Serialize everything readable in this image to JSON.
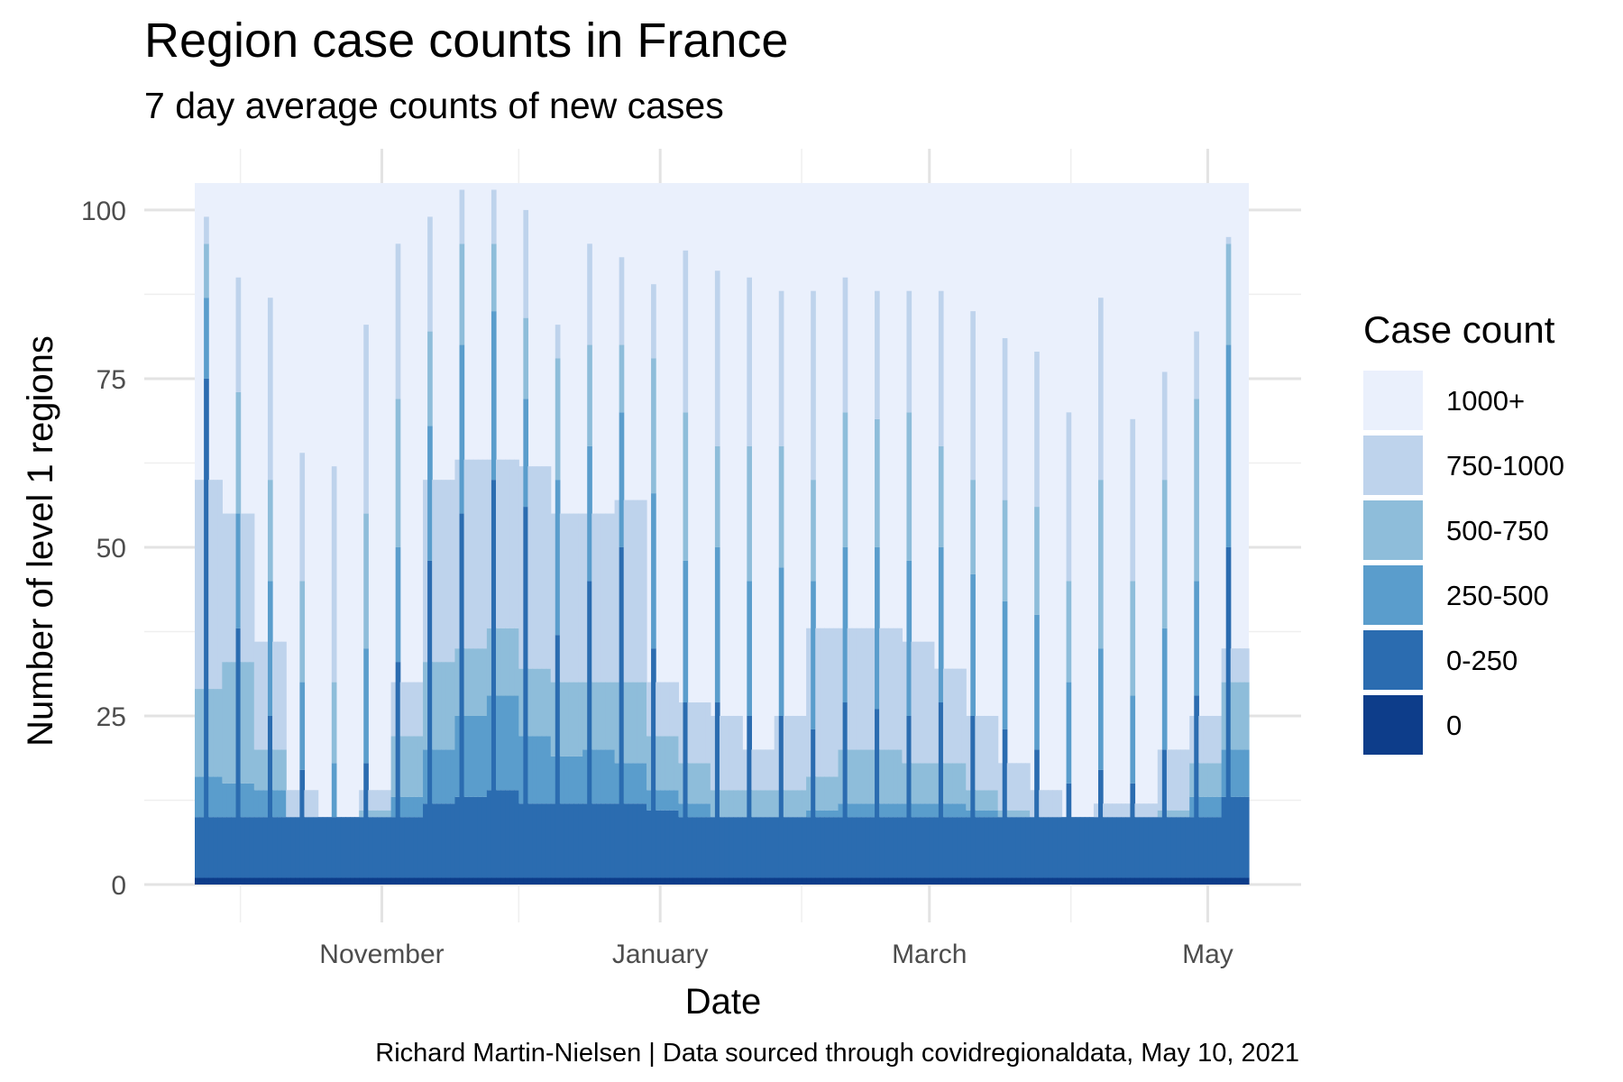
{
  "chart_data": {
    "type": "bar",
    "title": "Region case counts in France",
    "subtitle": "7 day average counts of new cases",
    "xlabel": "Date",
    "ylabel": "Number of level 1 regions",
    "caption": "Richard Martin-Nielsen | Data sourced through covidregionaldata, May 10, 2021",
    "x_start": "2020-09-21",
    "x_end": "2021-05-09",
    "ylim": [
      0,
      104
    ],
    "grid": true,
    "legend_position": "right",
    "x_ticks": [
      {
        "date": "2020-11-01",
        "label": "November"
      },
      {
        "date": "2021-01-01",
        "label": "January"
      },
      {
        "date": "2021-03-01",
        "label": "March"
      },
      {
        "date": "2021-05-01",
        "label": "May"
      }
    ],
    "y_ticks": [
      0,
      25,
      50,
      75,
      100
    ],
    "legend": {
      "title": "Case count",
      "entries": [
        {
          "label": "1000+",
          "color": "#eaf0fc"
        },
        {
          "label": "750-1000",
          "color": "#bed3ec"
        },
        {
          "label": "500-750",
          "color": "#8ebdda"
        },
        {
          "label": "250-500",
          "color": "#5a9dcc"
        },
        {
          "label": "0-250",
          "color": "#2b6cb0"
        },
        {
          "label": "0",
          "color": "#0d3d8a"
        }
      ]
    },
    "series_order_bottom_to_top": [
      "0",
      "0-250",
      "250-500",
      "500-750",
      "750-1000",
      "1000+"
    ],
    "total_regions": 104,
    "weekly_pattern": "low-count day once per week",
    "baseline": {
      "zero_band": 1,
      "low_band_top": 10
    },
    "weekly_spikes": [
      {
        "date": "2020-09-23",
        "cum": [
          1,
          75,
          87,
          95,
          99
        ]
      },
      {
        "date": "2020-09-30",
        "cum": [
          1,
          38,
          55,
          73,
          90
        ]
      },
      {
        "date": "2020-10-07",
        "cum": [
          1,
          25,
          45,
          60,
          87
        ]
      },
      {
        "date": "2020-10-14",
        "cum": [
          1,
          17,
          30,
          45,
          64
        ]
      },
      {
        "date": "2020-10-21",
        "cum": [
          1,
          10,
          18,
          30,
          62
        ]
      },
      {
        "date": "2020-10-28",
        "cum": [
          1,
          18,
          35,
          55,
          83
        ]
      },
      {
        "date": "2020-11-04",
        "cum": [
          1,
          33,
          50,
          72,
          95
        ]
      },
      {
        "date": "2020-11-11",
        "cum": [
          1,
          48,
          68,
          82,
          99
        ]
      },
      {
        "date": "2020-11-18",
        "cum": [
          1,
          55,
          80,
          95,
          103
        ]
      },
      {
        "date": "2020-11-25",
        "cum": [
          1,
          60,
          85,
          95,
          103
        ]
      },
      {
        "date": "2020-12-02",
        "cum": [
          1,
          56,
          72,
          84,
          100
        ]
      },
      {
        "date": "2020-12-09",
        "cum": [
          1,
          37,
          60,
          78,
          83
        ]
      },
      {
        "date": "2020-12-16",
        "cum": [
          1,
          45,
          65,
          80,
          95
        ]
      },
      {
        "date": "2020-12-23",
        "cum": [
          1,
          50,
          70,
          80,
          93
        ]
      },
      {
        "date": "2020-12-30",
        "cum": [
          1,
          35,
          58,
          78,
          89
        ]
      },
      {
        "date": "2021-01-06",
        "cum": [
          1,
          27,
          48,
          70,
          94
        ]
      },
      {
        "date": "2021-01-13",
        "cum": [
          1,
          27,
          50,
          65,
          91
        ]
      },
      {
        "date": "2021-01-20",
        "cum": [
          1,
          25,
          45,
          65,
          90
        ]
      },
      {
        "date": "2021-01-27",
        "cum": [
          1,
          25,
          47,
          65,
          88
        ]
      },
      {
        "date": "2021-02-03",
        "cum": [
          1,
          23,
          45,
          60,
          88
        ]
      },
      {
        "date": "2021-02-10",
        "cum": [
          1,
          27,
          50,
          70,
          90
        ]
      },
      {
        "date": "2021-02-17",
        "cum": [
          1,
          26,
          50,
          69,
          88
        ]
      },
      {
        "date": "2021-02-24",
        "cum": [
          1,
          25,
          48,
          70,
          88
        ]
      },
      {
        "date": "2021-03-03",
        "cum": [
          1,
          27,
          50,
          65,
          88
        ]
      },
      {
        "date": "2021-03-10",
        "cum": [
          1,
          25,
          46,
          60,
          85
        ]
      },
      {
        "date": "2021-03-17",
        "cum": [
          1,
          23,
          42,
          57,
          81
        ]
      },
      {
        "date": "2021-03-24",
        "cum": [
          1,
          20,
          40,
          56,
          79
        ]
      },
      {
        "date": "2021-03-31",
        "cum": [
          1,
          15,
          30,
          45,
          70
        ]
      },
      {
        "date": "2021-04-07",
        "cum": [
          1,
          17,
          35,
          60,
          87
        ]
      },
      {
        "date": "2021-04-14",
        "cum": [
          1,
          15,
          28,
          45,
          69
        ]
      },
      {
        "date": "2021-04-21",
        "cum": [
          1,
          20,
          38,
          60,
          76
        ]
      },
      {
        "date": "2021-04-28",
        "cum": [
          1,
          28,
          45,
          72,
          82
        ]
      },
      {
        "date": "2021-05-05",
        "cum": [
          1,
          50,
          80,
          95,
          96
        ]
      }
    ],
    "background_phases": [
      {
        "start": "2020-09-21",
        "end": "2020-09-26",
        "cum": [
          1,
          10,
          16,
          29,
          60
        ]
      },
      {
        "start": "2020-09-27",
        "end": "2020-10-03",
        "cum": [
          1,
          10,
          15,
          33,
          55
        ]
      },
      {
        "start": "2020-10-04",
        "end": "2020-10-10",
        "cum": [
          1,
          10,
          14,
          20,
          36
        ]
      },
      {
        "start": "2020-10-11",
        "end": "2020-10-17",
        "cum": [
          1,
          10,
          10,
          10,
          14
        ]
      },
      {
        "start": "2020-10-18",
        "end": "2020-10-26",
        "cum": [
          1,
          10,
          10,
          10,
          10
        ]
      },
      {
        "start": "2020-10-27",
        "end": "2020-11-02",
        "cum": [
          1,
          10,
          10,
          11,
          14
        ]
      },
      {
        "start": "2020-11-03",
        "end": "2020-11-09",
        "cum": [
          1,
          10,
          13,
          22,
          30
        ]
      },
      {
        "start": "2020-11-10",
        "end": "2020-11-16",
        "cum": [
          1,
          12,
          20,
          33,
          60
        ]
      },
      {
        "start": "2020-11-17",
        "end": "2020-11-23",
        "cum": [
          1,
          13,
          25,
          35,
          63
        ]
      },
      {
        "start": "2020-11-24",
        "end": "2020-11-30",
        "cum": [
          1,
          14,
          28,
          38,
          63
        ]
      },
      {
        "start": "2020-12-01",
        "end": "2020-12-07",
        "cum": [
          1,
          12,
          22,
          32,
          62
        ]
      },
      {
        "start": "2020-12-08",
        "end": "2020-12-14",
        "cum": [
          1,
          12,
          19,
          30,
          55
        ]
      },
      {
        "start": "2020-12-15",
        "end": "2020-12-21",
        "cum": [
          1,
          12,
          20,
          30,
          55
        ]
      },
      {
        "start": "2020-12-22",
        "end": "2020-12-28",
        "cum": [
          1,
          12,
          18,
          30,
          57
        ]
      },
      {
        "start": "2020-12-29",
        "end": "2021-01-04",
        "cum": [
          1,
          11,
          14,
          22,
          30
        ]
      },
      {
        "start": "2021-01-05",
        "end": "2021-01-11",
        "cum": [
          1,
          10,
          12,
          18,
          27
        ]
      },
      {
        "start": "2021-01-12",
        "end": "2021-01-18",
        "cum": [
          1,
          10,
          10,
          14,
          25
        ]
      },
      {
        "start": "2021-01-19",
        "end": "2021-01-25",
        "cum": [
          1,
          10,
          10,
          14,
          20
        ]
      },
      {
        "start": "2021-01-26",
        "end": "2021-02-01",
        "cum": [
          1,
          10,
          10,
          14,
          25
        ]
      },
      {
        "start": "2021-02-02",
        "end": "2021-02-08",
        "cum": [
          1,
          10,
          11,
          16,
          38
        ]
      },
      {
        "start": "2021-02-09",
        "end": "2021-02-15",
        "cum": [
          1,
          10,
          12,
          20,
          38
        ]
      },
      {
        "start": "2021-02-16",
        "end": "2021-02-22",
        "cum": [
          1,
          10,
          12,
          20,
          38
        ]
      },
      {
        "start": "2021-02-23",
        "end": "2021-03-01",
        "cum": [
          1,
          10,
          12,
          18,
          36
        ]
      },
      {
        "start": "2021-03-02",
        "end": "2021-03-08",
        "cum": [
          1,
          10,
          12,
          18,
          32
        ]
      },
      {
        "start": "2021-03-09",
        "end": "2021-03-15",
        "cum": [
          1,
          10,
          11,
          14,
          25
        ]
      },
      {
        "start": "2021-03-16",
        "end": "2021-03-22",
        "cum": [
          1,
          10,
          10,
          11,
          18
        ]
      },
      {
        "start": "2021-03-23",
        "end": "2021-03-29",
        "cum": [
          1,
          10,
          10,
          10,
          14
        ]
      },
      {
        "start": "2021-03-30",
        "end": "2021-04-05",
        "cum": [
          1,
          10,
          10,
          10,
          10
        ]
      },
      {
        "start": "2021-04-06",
        "end": "2021-04-12",
        "cum": [
          1,
          10,
          10,
          10,
          12
        ]
      },
      {
        "start": "2021-04-13",
        "end": "2021-04-19",
        "cum": [
          1,
          10,
          10,
          10,
          12
        ]
      },
      {
        "start": "2021-04-20",
        "end": "2021-04-26",
        "cum": [
          1,
          10,
          10,
          11,
          20
        ]
      },
      {
        "start": "2021-04-27",
        "end": "2021-05-03",
        "cum": [
          1,
          10,
          13,
          18,
          25
        ]
      },
      {
        "start": "2021-05-04",
        "end": "2021-05-09",
        "cum": [
          1,
          13,
          20,
          30,
          35
        ]
      }
    ]
  }
}
